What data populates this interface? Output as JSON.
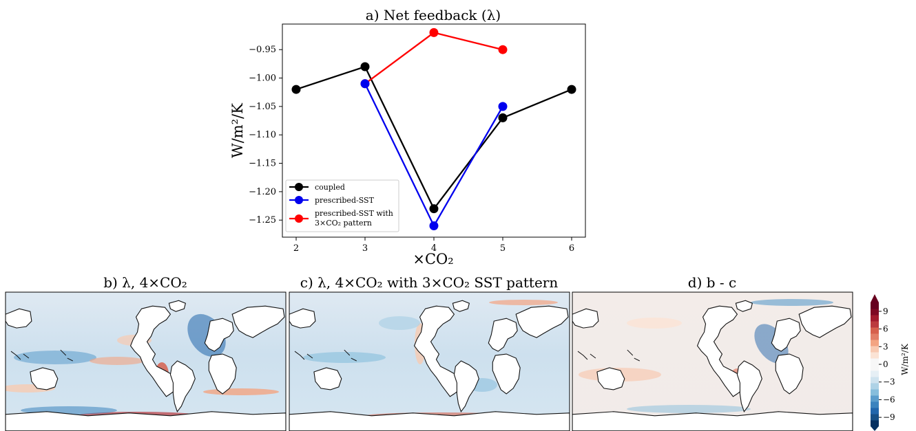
{
  "colors": {
    "coupled": "#000000",
    "prescribed_sst": "#0000ee",
    "prescribed_sst_3x": "#ff0000",
    "map_land": "#ffffff",
    "map_coast": "#111111"
  },
  "chart_data": [
    {
      "type": "line",
      "title": "a) Net feedback (λ)",
      "xlabel": "×CO₂",
      "ylabel": "W/m²/K",
      "xlim": [
        1.8,
        6.2
      ],
      "ylim": [
        -1.28,
        -0.905
      ],
      "xticks": [
        2,
        3,
        4,
        5,
        6
      ],
      "xtick_labels": [
        "2",
        "3",
        "4",
        "5",
        "6"
      ],
      "yticks": [
        -1.25,
        -1.2,
        -1.15,
        -1.1,
        -1.05,
        -1.0,
        -0.95
      ],
      "ytick_labels": [
        "−1.25",
        "−1.20",
        "−1.15",
        "−1.10",
        "−1.05",
        "−1.00",
        "−0.95"
      ],
      "grid": false,
      "legend_position": "lower-left",
      "series": [
        {
          "name": "coupled",
          "color": "#000000",
          "x": [
            2,
            3,
            4,
            5,
            6
          ],
          "y": [
            -1.02,
            -0.98,
            -1.23,
            -1.07,
            -1.02
          ]
        },
        {
          "name": "prescribed-SST",
          "color": "#0000ee",
          "x": [
            3,
            4,
            5
          ],
          "y": [
            -1.01,
            -1.26,
            -1.05
          ]
        },
        {
          "name": "prescribed-SST with",
          "name_line2": "3×CO₂ pattern",
          "color": "#ff0000",
          "x": [
            3,
            4,
            5
          ],
          "y": [
            -1.01,
            -0.92,
            -0.95
          ]
        }
      ]
    },
    {
      "type": "heatmap",
      "title": "b) λ, 4×CO₂",
      "description": "global map of feedback parameter"
    },
    {
      "type": "heatmap",
      "title": "c) λ, 4×CO₂ with 3×CO₂ SST pattern",
      "description": "global map of feedback parameter"
    },
    {
      "type": "heatmap",
      "title": "d) b - c",
      "description": "global map of difference"
    }
  ],
  "colorbar": {
    "label": "W/m²/K",
    "range": [
      -10.5,
      10.5
    ],
    "ticks": [
      9,
      6,
      3,
      0,
      -3,
      -6,
      -9
    ],
    "tick_labels": [
      "9",
      "6",
      "3",
      "0",
      "−3",
      "−6",
      "−9"
    ],
    "extend": "both",
    "colors": [
      "#053061",
      "#164f86",
      "#2166ac",
      "#3b83be",
      "#5b9dcc",
      "#87bedc",
      "#aed2e6",
      "#cfe3ef",
      "#e6eff5",
      "#f7f7f7",
      "#f7f7f7",
      "#fbe3d5",
      "#f8cab2",
      "#f3a482",
      "#e27f68",
      "#d6604d",
      "#bb3a3e",
      "#a21a2d",
      "#7e0823",
      "#67001f"
    ]
  }
}
